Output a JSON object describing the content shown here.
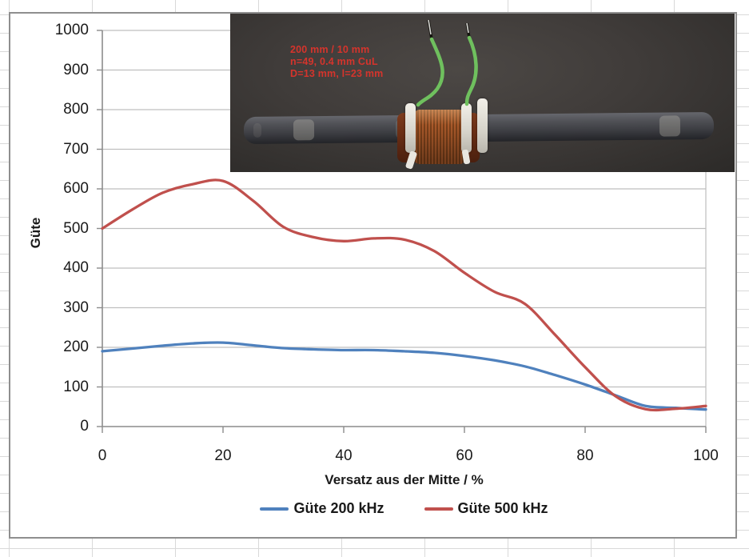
{
  "chart": {
    "background": "#ffffff",
    "border_color": "#8f8f8f",
    "gridline_color": "#bfbfbf",
    "axis_color": "#8c8c8c",
    "text_color": "#1a1a1a"
  },
  "chart_data": {
    "type": "line",
    "title": "",
    "xlabel": "Versatz aus der Mitte / %",
    "ylabel": "Güte",
    "xlim": [
      0,
      100
    ],
    "ylim": [
      0,
      1000
    ],
    "xticks": [
      0,
      20,
      40,
      60,
      80,
      100
    ],
    "yticks": [
      0,
      100,
      200,
      300,
      400,
      500,
      600,
      700,
      800,
      900,
      1000
    ],
    "grid": true,
    "smooth": true,
    "legend_position": "bottom",
    "x": [
      0,
      5,
      10,
      15,
      20,
      25,
      30,
      35,
      40,
      45,
      50,
      55,
      60,
      65,
      70,
      75,
      80,
      85,
      90,
      95,
      100
    ],
    "series": [
      {
        "name": "Güte 200 kHz",
        "color": "#4F81BD",
        "values": [
          190,
          197,
          204,
          210,
          212,
          205,
          198,
          195,
          193,
          193,
          190,
          186,
          178,
          167,
          152,
          130,
          106,
          79,
          52,
          47,
          43
        ]
      },
      {
        "name": "Güte 500 kHz",
        "color": "#C0504D",
        "values": [
          500,
          548,
          590,
          612,
          620,
          570,
          504,
          478,
          468,
          475,
          472,
          443,
          388,
          340,
          310,
          232,
          150,
          77,
          44,
          45,
          52
        ]
      }
    ]
  },
  "photo": {
    "annotation_lines": [
      "200 mm / 10 mm",
      "n=49, 0.4 mm CuL",
      "D=13 mm, l=23 mm"
    ],
    "annotation_color": "#d5342c",
    "colors": {
      "wire_green": "#6fc05e",
      "wire_tip": "#d8d8d4",
      "copper": "#a9592a",
      "bobbin": "#6b2f16",
      "cable_tie": "#e9e6df",
      "rod": "#46474c"
    }
  }
}
